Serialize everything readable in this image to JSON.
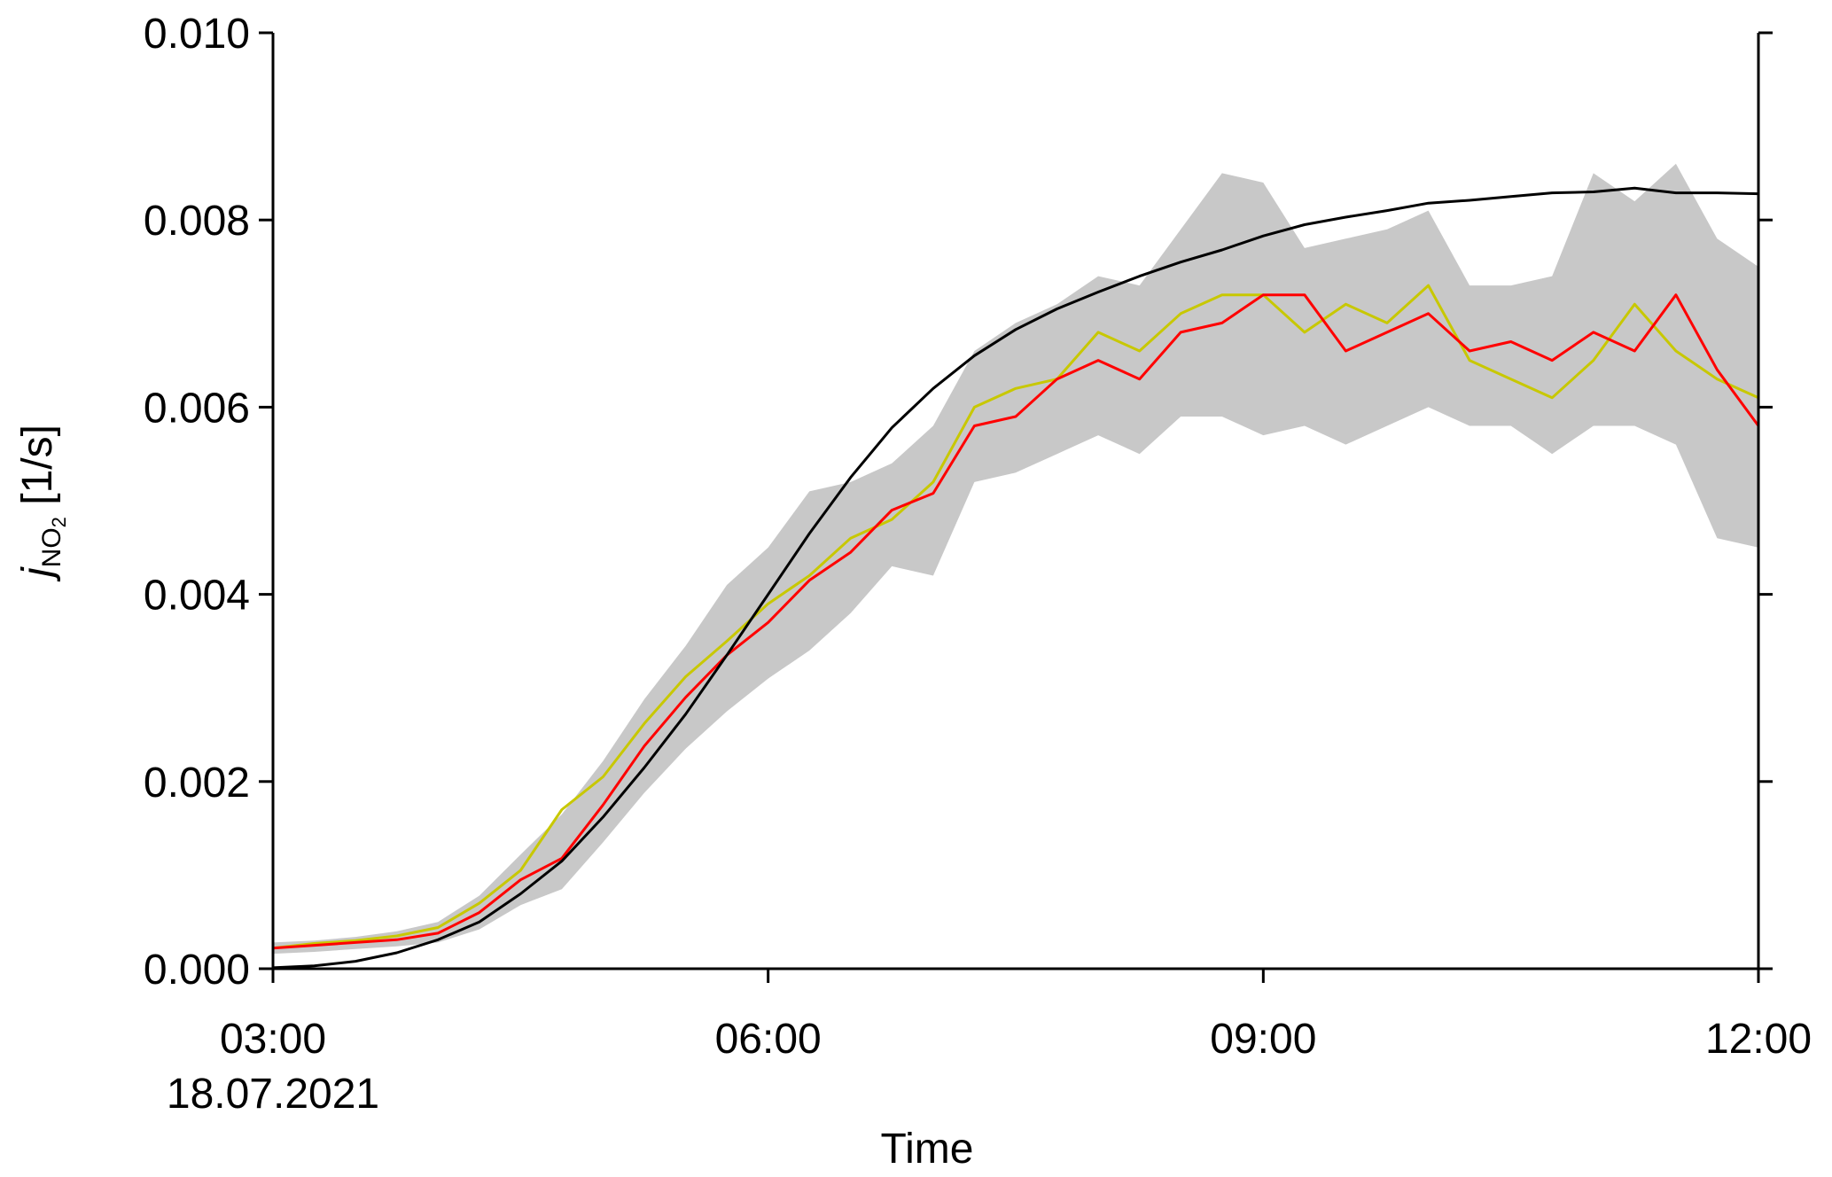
{
  "chart_data": {
    "type": "line",
    "title": "",
    "xlabel": "Time",
    "ylabel": {
      "base": "j",
      "sub": "NO",
      "sub2": "2",
      "unit": " [1/s]"
    },
    "x_ticks": [
      "03:00",
      "06:00",
      "09:00",
      "12:00"
    ],
    "x_tick_values": [
      3,
      6,
      9,
      12
    ],
    "x_date_label": "18.07.2021",
    "y_ticks": [
      "0.000",
      "0.002",
      "0.004",
      "0.006",
      "0.008",
      "0.010"
    ],
    "y_tick_values": [
      0,
      0.002,
      0.004,
      0.006,
      0.008,
      0.01
    ],
    "xlim": [
      3,
      12
    ],
    "ylim": [
      0,
      0.01
    ],
    "grid": false,
    "colors": {
      "black": "#000000",
      "red": "#ff0000",
      "yellow": "#c8c800",
      "band": "#c8c8c8"
    },
    "x": [
      3.0,
      3.25,
      3.5,
      3.75,
      4.0,
      4.25,
      4.5,
      4.75,
      5.0,
      5.25,
      5.5,
      5.75,
      6.0,
      6.25,
      6.5,
      6.75,
      7.0,
      7.25,
      7.5,
      7.75,
      8.0,
      8.25,
      8.5,
      8.75,
      9.0,
      9.25,
      9.5,
      9.75,
      10.0,
      10.25,
      10.5,
      10.75,
      11.0,
      11.25,
      11.5,
      11.75,
      12.0
    ],
    "series": [
      {
        "name": "",
        "color": "#000000",
        "values": [
          1e-05,
          3e-05,
          8e-05,
          0.00017,
          0.00031,
          0.0005,
          0.0008,
          0.00115,
          0.00162,
          0.00215,
          0.00272,
          0.00335,
          0.004,
          0.00465,
          0.00525,
          0.00578,
          0.0062,
          0.00655,
          0.00683,
          0.00705,
          0.00723,
          0.0074,
          0.00755,
          0.00768,
          0.00783,
          0.00795,
          0.00803,
          0.0081,
          0.00818,
          0.00821,
          0.00825,
          0.00829,
          0.0083,
          0.00834,
          0.00829,
          0.00829,
          0.00828
        ]
      },
      {
        "name": "",
        "color": "#ff0000",
        "values": [
          0.00022,
          0.00025,
          0.00028,
          0.00031,
          0.00038,
          0.0006,
          0.00095,
          0.00118,
          0.00175,
          0.00238,
          0.0029,
          0.00335,
          0.0037,
          0.00415,
          0.00445,
          0.0049,
          0.00508,
          0.0058,
          0.0059,
          0.0063,
          0.0065,
          0.0063,
          0.0068,
          0.0069,
          0.0072,
          0.0072,
          0.0066,
          0.0068,
          0.007,
          0.0066,
          0.0067,
          0.0065,
          0.0068,
          0.0066,
          0.0072,
          0.0064,
          0.0058
        ]
      },
      {
        "name": "",
        "color": "#c8c800",
        "values": [
          0.00022,
          0.00027,
          0.0003,
          0.00035,
          0.00044,
          0.0007,
          0.00105,
          0.0017,
          0.00205,
          0.00262,
          0.00312,
          0.0035,
          0.0039,
          0.0042,
          0.0046,
          0.0048,
          0.0052,
          0.006,
          0.0062,
          0.0063,
          0.0068,
          0.0066,
          0.007,
          0.0072,
          0.0072,
          0.0068,
          0.0071,
          0.0069,
          0.0073,
          0.0065,
          0.0063,
          0.0061,
          0.0065,
          0.0071,
          0.0066,
          0.0063,
          0.0061
        ]
      },
      {
        "name": "",
        "color": "#c8c8c8",
        "band": true,
        "upper": [
          0.00028,
          0.0003,
          0.00034,
          0.0004,
          0.0005,
          0.00078,
          0.00122,
          0.00165,
          0.00222,
          0.00288,
          0.00345,
          0.0041,
          0.0045,
          0.0051,
          0.0052,
          0.0054,
          0.0058,
          0.0066,
          0.0069,
          0.0071,
          0.0074,
          0.0073,
          0.0079,
          0.0085,
          0.0084,
          0.0077,
          0.0078,
          0.0079,
          0.0081,
          0.0073,
          0.0073,
          0.0074,
          0.0085,
          0.0082,
          0.0086,
          0.0078,
          0.0075
        ],
        "lower": [
          0.00016,
          0.00018,
          0.00021,
          0.00024,
          0.00028,
          0.00042,
          0.00068,
          0.00085,
          0.00135,
          0.00188,
          0.00235,
          0.00275,
          0.0031,
          0.0034,
          0.0038,
          0.0043,
          0.0042,
          0.0052,
          0.0053,
          0.0055,
          0.0057,
          0.0055,
          0.0059,
          0.0059,
          0.0057,
          0.0058,
          0.0056,
          0.0058,
          0.006,
          0.0058,
          0.0058,
          0.0055,
          0.0058,
          0.0058,
          0.0056,
          0.0046,
          0.0045
        ]
      }
    ]
  }
}
